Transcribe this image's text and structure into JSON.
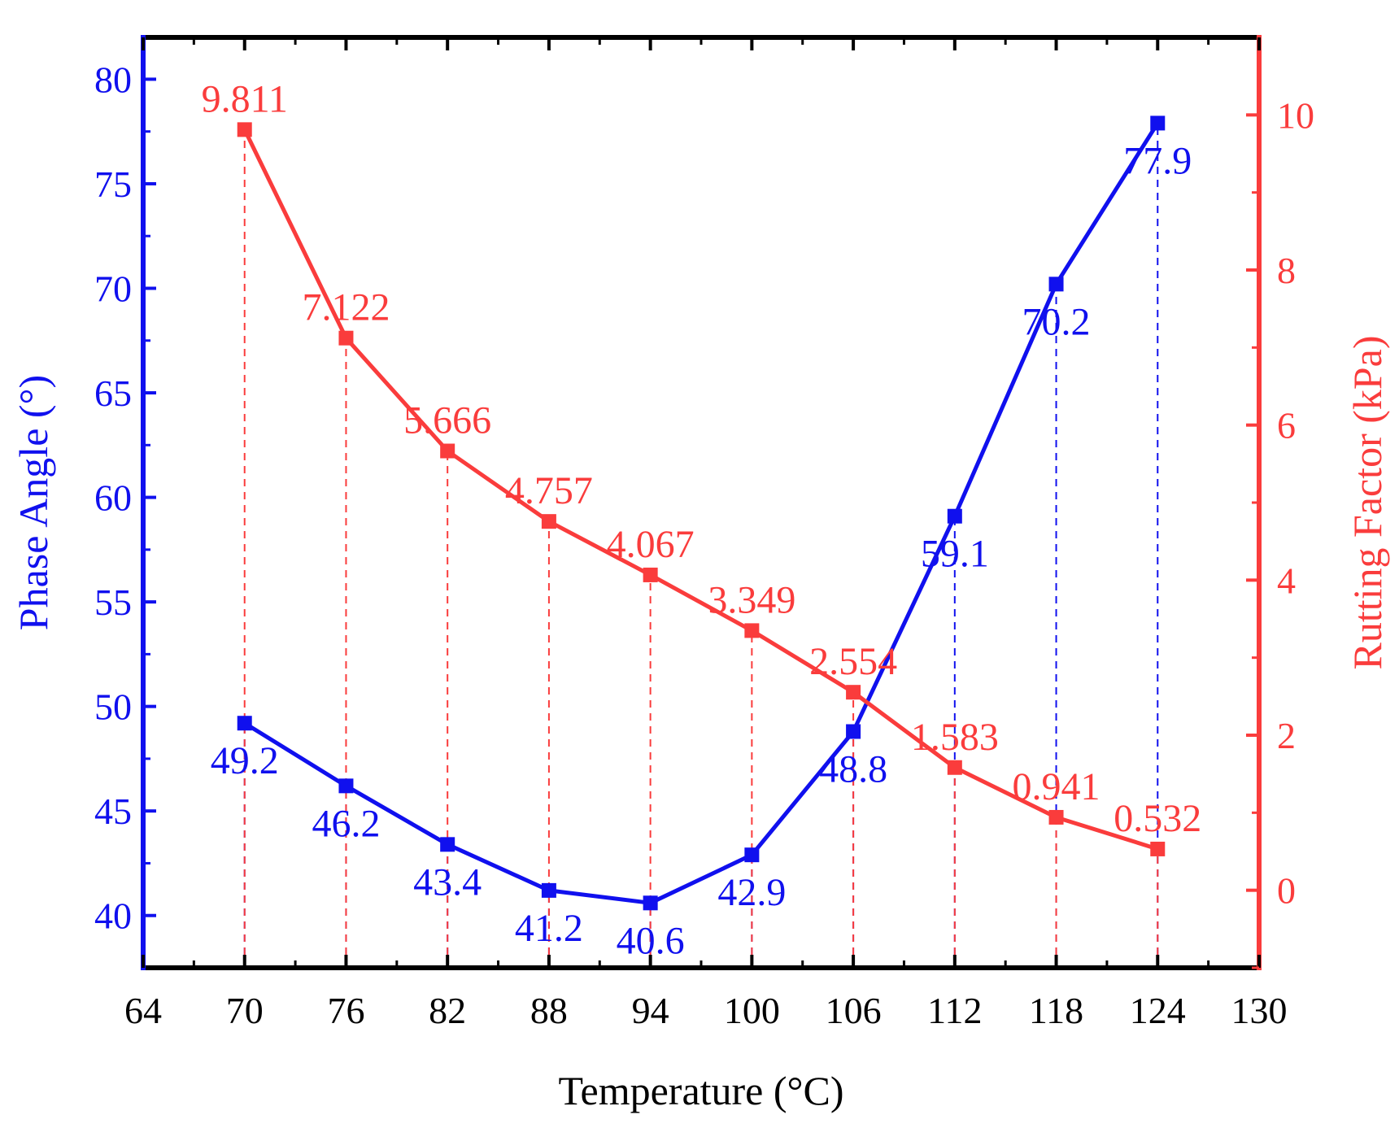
{
  "chart_data": {
    "type": "line",
    "xlabel": "Temperature (°C)",
    "ylabel_left": "Phase Angle (°)",
    "ylabel_right": "Rutting Factor (kPa)",
    "x": [
      70,
      76,
      82,
      88,
      94,
      100,
      106,
      112,
      118,
      124
    ],
    "xlim": [
      64,
      130
    ],
    "xticks": [
      "64",
      "70",
      "76",
      "82",
      "88",
      "94",
      "100",
      "106",
      "112",
      "118",
      "124",
      "130"
    ],
    "ylim_left": [
      37.5,
      82
    ],
    "yticks_left": [
      "40",
      "45",
      "50",
      "55",
      "60",
      "65",
      "70",
      "75",
      "80"
    ],
    "ylim_right": [
      -1.0,
      11.0
    ],
    "yticks_right": [
      "0",
      "2",
      "4",
      "6",
      "8",
      "10"
    ],
    "grid": false,
    "series": [
      {
        "axis": "left",
        "color": "#1010ee",
        "values": [
          49.2,
          46.2,
          43.4,
          41.2,
          40.6,
          42.9,
          48.8,
          59.1,
          70.2,
          77.9
        ],
        "labels": [
          "49.2",
          "46.2",
          "43.4",
          "41.2",
          "40.6",
          "42.9",
          "48.8",
          "59.1",
          "70.2",
          "77.9"
        ]
      },
      {
        "axis": "right",
        "color": "#fa3c3c",
        "values": [
          9.811,
          7.122,
          5.666,
          4.757,
          4.067,
          3.349,
          2.554,
          1.583,
          0.941,
          0.532
        ],
        "labels": [
          "9.811",
          "7.122",
          "5.666",
          "4.757",
          "4.067",
          "3.349",
          "2.554",
          "1.583",
          "0.941",
          "0.532"
        ]
      }
    ],
    "colors": {
      "left_axis": "#1010ee",
      "right_axis": "#fa3c3c",
      "frame": "#000000"
    }
  }
}
